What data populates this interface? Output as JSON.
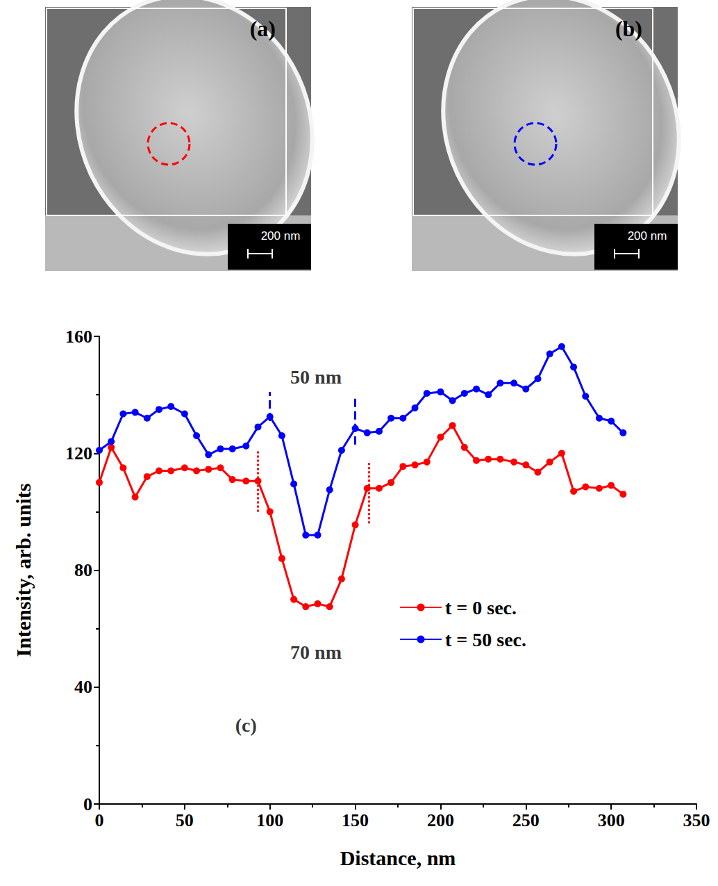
{
  "chart_data": {
    "type": "line",
    "x_label": "Distance, nm",
    "y_label": "Intensity, arb. units",
    "xlim": [
      0,
      350
    ],
    "xticks": [
      0,
      50,
      100,
      150,
      200,
      250,
      300,
      350
    ],
    "ylim": [
      0,
      160
    ],
    "yticks": [
      0,
      40,
      80,
      120,
      160
    ],
    "grid": false,
    "legend": "lower right",
    "x": [
      0,
      7,
      14,
      21,
      28,
      35,
      42,
      50,
      57,
      64,
      71,
      78,
      86,
      93,
      100,
      107,
      114,
      121,
      128,
      135,
      142,
      150,
      157,
      164,
      171,
      178,
      185,
      192,
      200,
      207,
      214,
      221,
      228,
      235,
      243,
      250,
      257,
      264,
      271,
      278,
      285,
      293,
      300,
      307
    ],
    "series": [
      {
        "name": "t = 0 sec.",
        "color": "#ff0000",
        "marker": "circle",
        "line_style": "solid",
        "values": [
          110,
          122,
          115,
          105,
          112,
          114,
          114,
          115,
          114,
          114.5,
          115,
          111,
          110.5,
          110.5,
          100,
          84,
          70,
          67.5,
          68.5,
          67.5,
          77,
          95.5,
          108,
          108,
          110,
          115.5,
          116,
          117,
          125.5,
          129.5,
          122,
          117.5,
          118,
          118,
          117,
          116,
          113.5,
          117,
          120,
          107,
          108.5,
          108,
          109,
          106
        ]
      },
      {
        "name": "t = 50 sec.",
        "color": "#0000ff",
        "marker": "circle",
        "line_style": "solid",
        "values": [
          121,
          124,
          133.5,
          134,
          132,
          135,
          136,
          133.5,
          126,
          119.5,
          121.5,
          121.5,
          122.5,
          129,
          132.5,
          126,
          109.5,
          92,
          92,
          107.5,
          121,
          128.5,
          127,
          127.5,
          132,
          132,
          135.5,
          140.5,
          141,
          138,
          140.5,
          142,
          140,
          144,
          144,
          142,
          145.5,
          154,
          156.5,
          149.5,
          139.5,
          132,
          131,
          127
        ]
      }
    ],
    "markers": [
      {
        "x": 100,
        "y": [
          131,
          141
        ],
        "color": "#0000ff",
        "line_style": "dashed"
      },
      {
        "x": 150,
        "y": [
          123,
          139
        ],
        "color": "#0000ff",
        "line_style": "dashed"
      },
      {
        "x": 93,
        "y": [
          100,
          121
        ],
        "color": "#ff0000",
        "line_style": "dotted"
      },
      {
        "x": 158,
        "y": [
          96,
          117
        ],
        "color": "#ff0000",
        "line_style": "dotted"
      }
    ],
    "annotations": [
      {
        "text": "50 nm",
        "x": 127,
        "y": 146
      },
      {
        "text": "70 nm",
        "x": 127,
        "y": 52
      },
      {
        "text": "(c)",
        "x": 86,
        "y": 27
      }
    ]
  },
  "panels": [
    {
      "label": "(a)",
      "scale_bar": "200 nm",
      "circle_color": "#ff0000"
    },
    {
      "label": "(b)",
      "scale_bar": "200 nm",
      "circle_color": "#0000ff"
    }
  ]
}
